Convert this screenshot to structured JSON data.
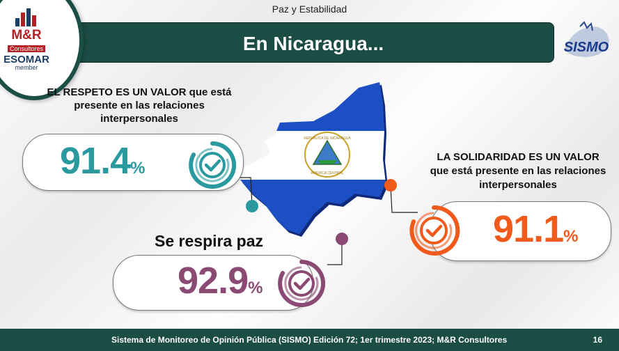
{
  "header": {
    "subtitle": "Paz y Estabilidad",
    "title": "En Nicaragua..."
  },
  "logo": {
    "brand": "M&R",
    "consultores": "Consultores",
    "esomar": "ESOMAR",
    "member": "member"
  },
  "sismo_logo": {
    "text": "SISMO"
  },
  "map": {
    "emblem_top": "REPUBLICA DE NICARAGUA",
    "emblem_bottom": "AMERICA CENTRAL"
  },
  "stats": [
    {
      "label": "EL RESPETO ES UN VALOR que está presente en las relaciones interpersonales",
      "value": "91.4",
      "unit": "%",
      "color": "#2b9aa0"
    },
    {
      "label": "LA SOLIDARIDAD ES UN VALOR que está presente en las relaciones interpersonales",
      "value": "91.1",
      "unit": "%",
      "color": "#f05a1a"
    },
    {
      "label": "Se respira paz",
      "value": "92.9",
      "unit": "%",
      "color": "#8a4a73"
    }
  ],
  "footer": {
    "text": "Sistema de Monitoreo de Opinión Pública (SISMO) Edición 72; 1er trimestre 2023; M&R Consultores",
    "page": "16"
  }
}
